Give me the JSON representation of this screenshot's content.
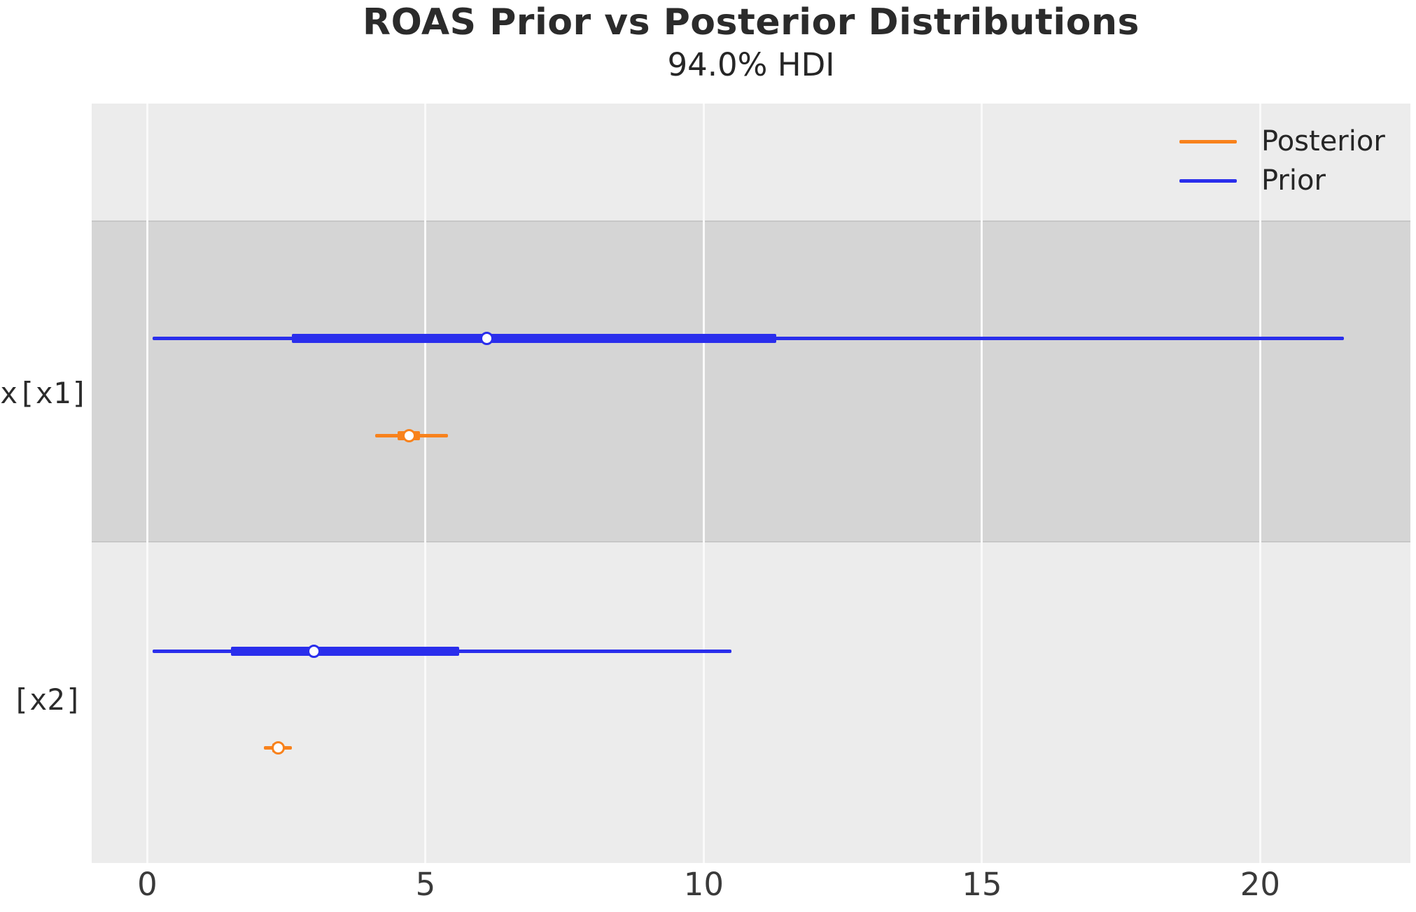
{
  "chart_data": {
    "type": "forest",
    "title": "ROAS Prior vs Posterior Distributions",
    "subtitle": "94.0% HDI",
    "hdi_prob_percent": 94.0,
    "xlim": [
      -1.0,
      22.7
    ],
    "xticks": [
      0,
      5,
      10,
      15,
      20
    ],
    "legend_position": "upper-right",
    "legend": [
      {
        "name": "Posterior",
        "color": "#f8821c"
      },
      {
        "name": "Prior",
        "color": "#2a2eec"
      }
    ],
    "colors": {
      "posterior": "#f8821c",
      "prior": "#2a2eec",
      "plot_background": "#ececec",
      "shaded_band": "#d5d5d5",
      "gridline": "#fafafa"
    },
    "rows": [
      {
        "label": "x[x1]",
        "shaded": true,
        "prior": {
          "hdi": [
            0.1,
            21.5
          ],
          "iqr": [
            2.6,
            11.3
          ],
          "median": 6.1
        },
        "posterior": {
          "hdi": [
            4.1,
            5.4
          ],
          "iqr": [
            4.5,
            4.9
          ],
          "median": 4.7
        }
      },
      {
        "label": "[x2]",
        "shaded": false,
        "prior": {
          "hdi": [
            0.1,
            10.5
          ],
          "iqr": [
            1.5,
            5.6
          ],
          "median": 3.0
        },
        "posterior": {
          "hdi": [
            2.1,
            2.6
          ],
          "iqr": [
            2.25,
            2.45
          ],
          "median": 2.35
        }
      }
    ]
  }
}
